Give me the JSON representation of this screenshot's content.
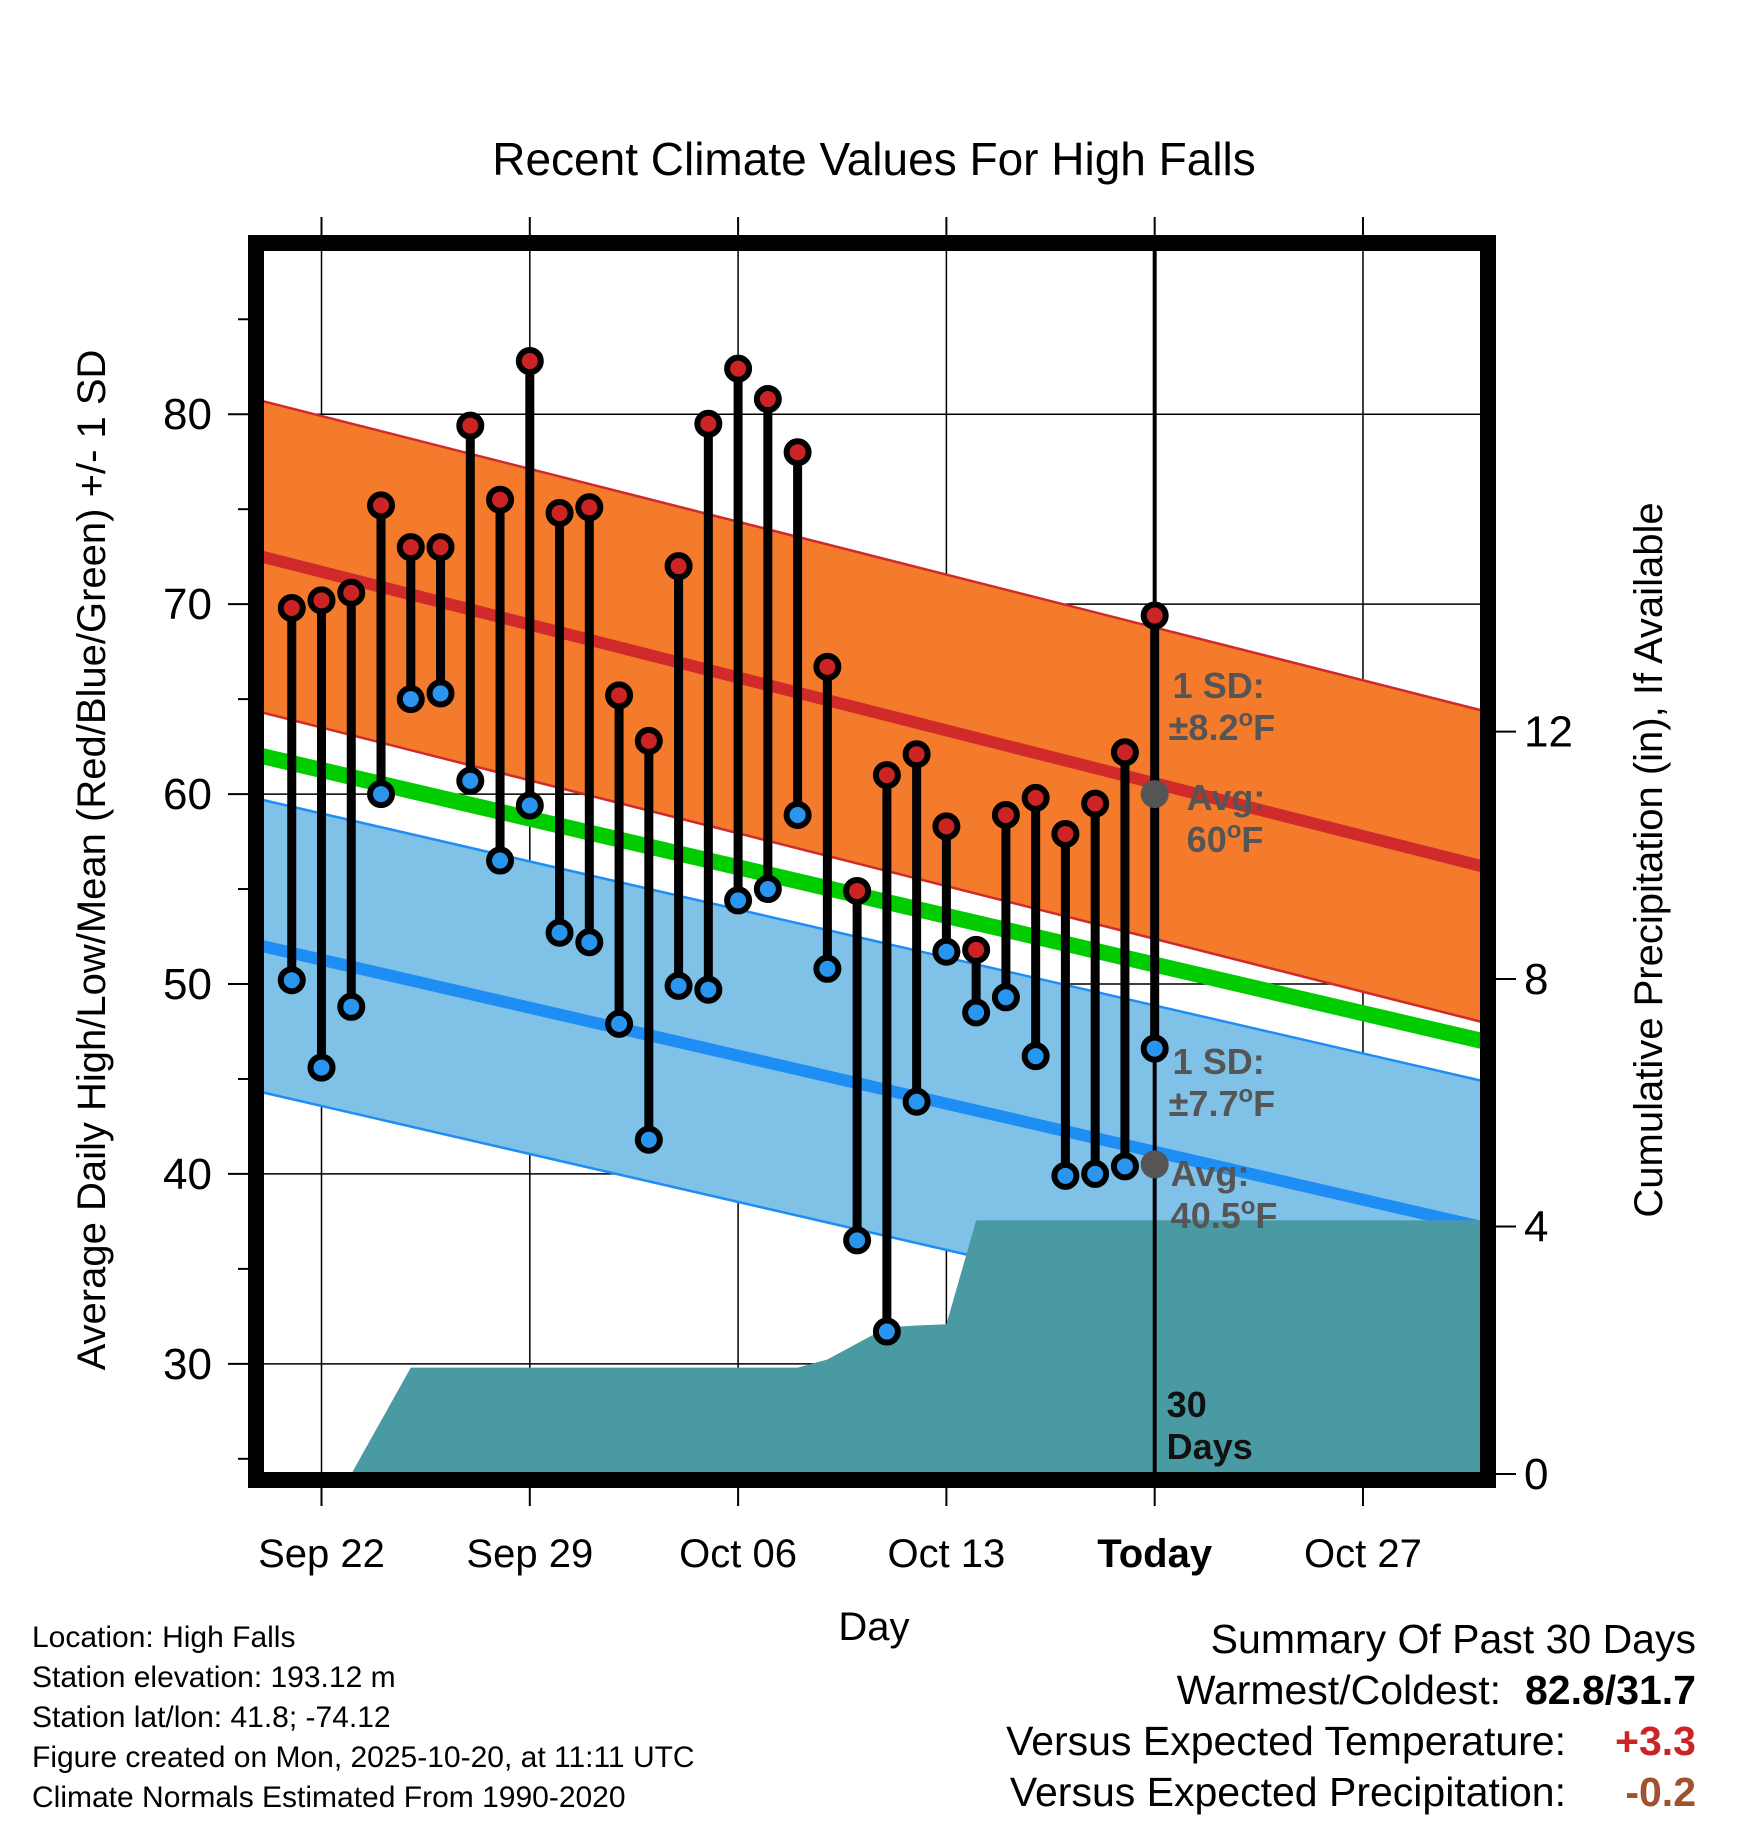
{
  "chart_data": {
    "type": "line",
    "title": "Recent Climate Values For High Falls",
    "xlabel": "Day",
    "ylabel": "Average Daily High/Low/Mean (Red/Blue/Green) +/- 1 SD",
    "y2label": "Cumulative Precipitation (in), If Available",
    "x_tick_labels": [
      "Sep 22",
      "Sep 29",
      "Oct 06",
      "Oct 13",
      "Today",
      "Oct 27"
    ],
    "x_tick_days": [
      2,
      9,
      16,
      23,
      30,
      37
    ],
    "xlim": [
      0,
      41
    ],
    "ylim": [
      24.2,
      88.7
    ],
    "y_ticks": [
      30,
      40,
      50,
      60,
      70,
      80
    ],
    "y2lim": [
      0,
      19.8
    ],
    "y2_ticks": [
      0,
      4,
      8,
      12
    ],
    "today_day": 30,
    "days_label": "30\nDays",
    "daily_high": [
      69.8,
      70.2,
      70.6,
      75.2,
      73.0,
      73.0,
      79.4,
      75.5,
      82.8,
      74.8,
      75.1,
      65.2,
      62.8,
      72.0,
      79.5,
      82.4,
      80.8,
      78.0,
      66.7,
      54.9,
      61.0,
      62.1,
      58.3,
      51.8,
      58.9,
      59.8,
      57.9,
      59.5,
      62.2,
      69.4
    ],
    "daily_low": [
      50.2,
      45.6,
      48.8,
      60.0,
      65.0,
      65.3,
      60.7,
      56.5,
      59.4,
      52.7,
      52.2,
      47.9,
      41.8,
      49.9,
      49.7,
      54.4,
      55.0,
      58.9,
      50.8,
      36.5,
      31.7,
      43.8,
      51.7,
      48.5,
      49.3,
      46.2,
      39.9,
      40.0,
      40.4,
      46.6
    ],
    "precip_day": [
      0,
      3,
      5,
      18,
      19,
      21,
      22,
      23,
      24,
      36,
      41
    ],
    "precip_cum": [
      0,
      0,
      1.72,
      1.72,
      1.85,
      2.37,
      2.4,
      2.42,
      4.1,
      4.1,
      4.1
    ],
    "normal_high": {
      "start": 72.5,
      "end": 56.2,
      "sd": 8.2
    },
    "normal_low": {
      "start": 52.0,
      "end": 37.2,
      "sd": 7.7
    },
    "normal_mean": {
      "start": 62.0,
      "end": 47.0
    },
    "high_annotation": {
      "sd": "1 SD:",
      "sd_value": "±8.2",
      "avg": "Avg:",
      "avg_value": "60",
      "unit": "F",
      "marker_value": 60.0
    },
    "low_annotation": {
      "sd": "1 SD:",
      "sd_value": "±7.7",
      "avg": "Avg:",
      "avg_value": "40.5",
      "unit": "F",
      "marker_value": 40.5
    },
    "colors": {
      "high_band": "#f47b2c",
      "high_line": "#d02a2a",
      "low_band": "#80c1e8",
      "low_line": "#1e8ef5",
      "mean_line": "#00cc00",
      "precip": "#4a9aa3",
      "high_marker": "#cc2424",
      "low_marker": "#2a95ee",
      "annotation": "#555555",
      "positive": "#cc2424",
      "negative": "#a0522d"
    }
  },
  "footer": {
    "location": "Location: High Falls",
    "elevation": "Station elevation: 193.12 m",
    "latlon": "Station lat/lon: 41.8; -74.12",
    "created": "Figure created on Mon, 2025-10-20, at 11:11 UTC",
    "normals": "Climate Normals Estimated From 1990-2020"
  },
  "summary": {
    "title": "Summary Of Past 30 Days",
    "warmest_label": "Warmest/Coldest:",
    "warmest_value": "82.8/31.7",
    "temp_label": "Versus Expected Temperature:",
    "temp_value": "+3.3",
    "precip_label": "Versus Expected Precipitation:",
    "precip_value": "-0.2"
  }
}
